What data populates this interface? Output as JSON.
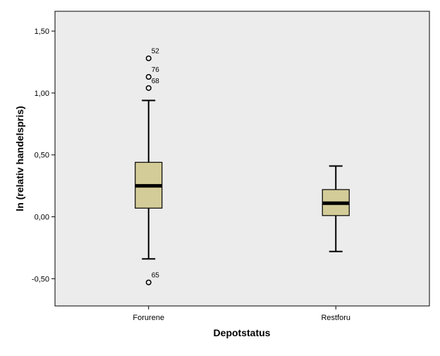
{
  "chart_data": {
    "type": "boxplot",
    "xlabel": "Depotstatus",
    "ylabel": "ln (relativ handelspris)",
    "ylim": [
      -0.72,
      1.66
    ],
    "yticks": [
      -0.5,
      0.0,
      0.5,
      1.0,
      1.5
    ],
    "ytick_labels": [
      "-0,50",
      "0,00",
      "0,50",
      "1,00",
      "1,50"
    ],
    "categories": [
      "Forurene",
      "Restforu"
    ],
    "box_fill": "#d4cc98",
    "plot_background": "#ececec",
    "boxes": [
      {
        "category": "Forurene",
        "whisker_low": -0.34,
        "q1": 0.07,
        "median": 0.25,
        "q3": 0.44,
        "whisker_high": 0.94,
        "outliers": [
          {
            "value": 1.28,
            "label": "52"
          },
          {
            "value": 1.13,
            "label": "76"
          },
          {
            "value": 1.04,
            "label": "68"
          },
          {
            "value": -0.53,
            "label": "65"
          }
        ]
      },
      {
        "category": "Restforu",
        "whisker_low": -0.28,
        "q1": 0.01,
        "median": 0.11,
        "q3": 0.22,
        "whisker_high": 0.41,
        "outliers": []
      }
    ]
  }
}
